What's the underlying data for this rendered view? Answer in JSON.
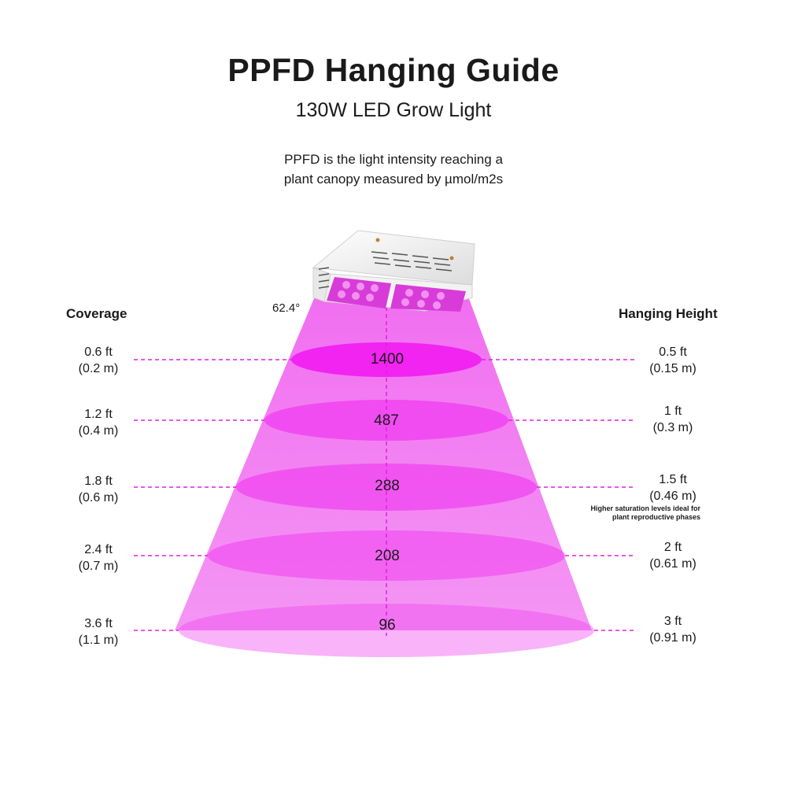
{
  "header": {
    "title": "PPFD Hanging Guide",
    "subtitle": "130W LED Grow Light",
    "description_line1": "PPFD is the light intensity reaching a",
    "description_line2": "plant canopy measured by µmol/m2s"
  },
  "coverage_heading": "Coverage",
  "height_heading": "Hanging Height",
  "beam_angle": "62.4°",
  "colors": {
    "beam": "#ee55ee",
    "ring": "#f040f0",
    "ring_top": "#f020f0",
    "guide_line": "#e020e0",
    "housing": "#f4f4f4",
    "led": "#d83cd8"
  },
  "levels": [
    {
      "ppfd": "1400",
      "coverage_ft": "0.6 ft",
      "coverage_m": "(0.2 m)",
      "height_ft": "0.5 ft",
      "height_m": "(0.15 m)"
    },
    {
      "ppfd": "487",
      "coverage_ft": "1.2 ft",
      "coverage_m": "(0.4 m)",
      "height_ft": "1 ft",
      "height_m": "(0.3 m)"
    },
    {
      "ppfd": "288",
      "coverage_ft": "1.8 ft",
      "coverage_m": "(0.6 m)",
      "height_ft": "1.5 ft",
      "height_m": "(0.46 m)"
    },
    {
      "ppfd": "208",
      "coverage_ft": "2.4 ft",
      "coverage_m": "(0.7 m)",
      "height_ft": "2 ft",
      "height_m": "(0.61 m)"
    },
    {
      "ppfd": "96",
      "coverage_ft": "3.6 ft",
      "coverage_m": "(1.1 m)",
      "height_ft": "3 ft",
      "height_m": "(0.91 m)"
    }
  ],
  "note_line1": "Higher saturation levels ideal for",
  "note_line2": "plant reproductive phases"
}
